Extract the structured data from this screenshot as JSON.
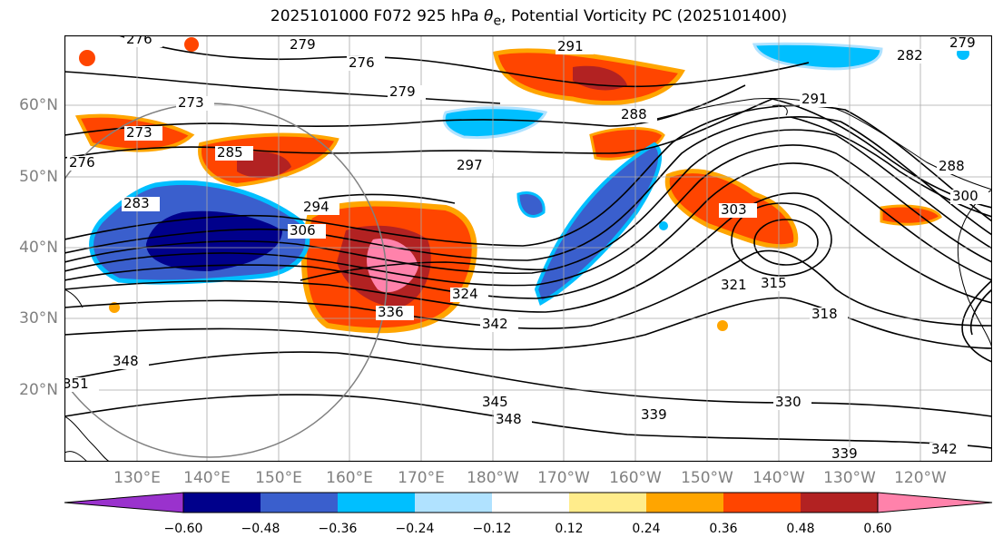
{
  "title_prefix": "2025101000 F072 925 hPa ",
  "title_symbol": "θ",
  "title_sub": "e",
  "title_suffix": ", Potential Vorticity PC (2025101400)",
  "lat_labels": [
    "60°N",
    "50°N",
    "40°N",
    "30°N",
    "20°N"
  ],
  "lon_labels": [
    "130°E",
    "140°E",
    "150°E",
    "160°E",
    "170°E",
    "180°W",
    "170°W",
    "160°W",
    "150°W",
    "140°W",
    "130°W",
    "120°W"
  ],
  "contour_labels": [
    "276",
    "279",
    "276",
    "291",
    "282",
    "279",
    "273",
    "279",
    "288",
    "297",
    "291",
    "273",
    "285",
    "288",
    "276",
    "294",
    "300",
    "306",
    "303",
    "283",
    "315",
    "321",
    "318",
    "324",
    "336",
    "342",
    "348",
    "345",
    "348",
    "330",
    "339",
    "339",
    "342",
    "351"
  ],
  "colorbar": {
    "ticks": [
      "−0.60",
      "−0.48",
      "−0.36",
      "−0.24",
      "−0.12",
      "0.12",
      "0.24",
      "0.36",
      "0.48",
      "0.60"
    ],
    "colors": [
      "#9a32cd",
      "#00008b",
      "#3a5fcd",
      "#00bfff",
      "#b0e2ff",
      "#ffffff",
      "#ffec8b",
      "#ffa500",
      "#ff4500",
      "#b22222",
      "#ff82ab"
    ]
  }
}
